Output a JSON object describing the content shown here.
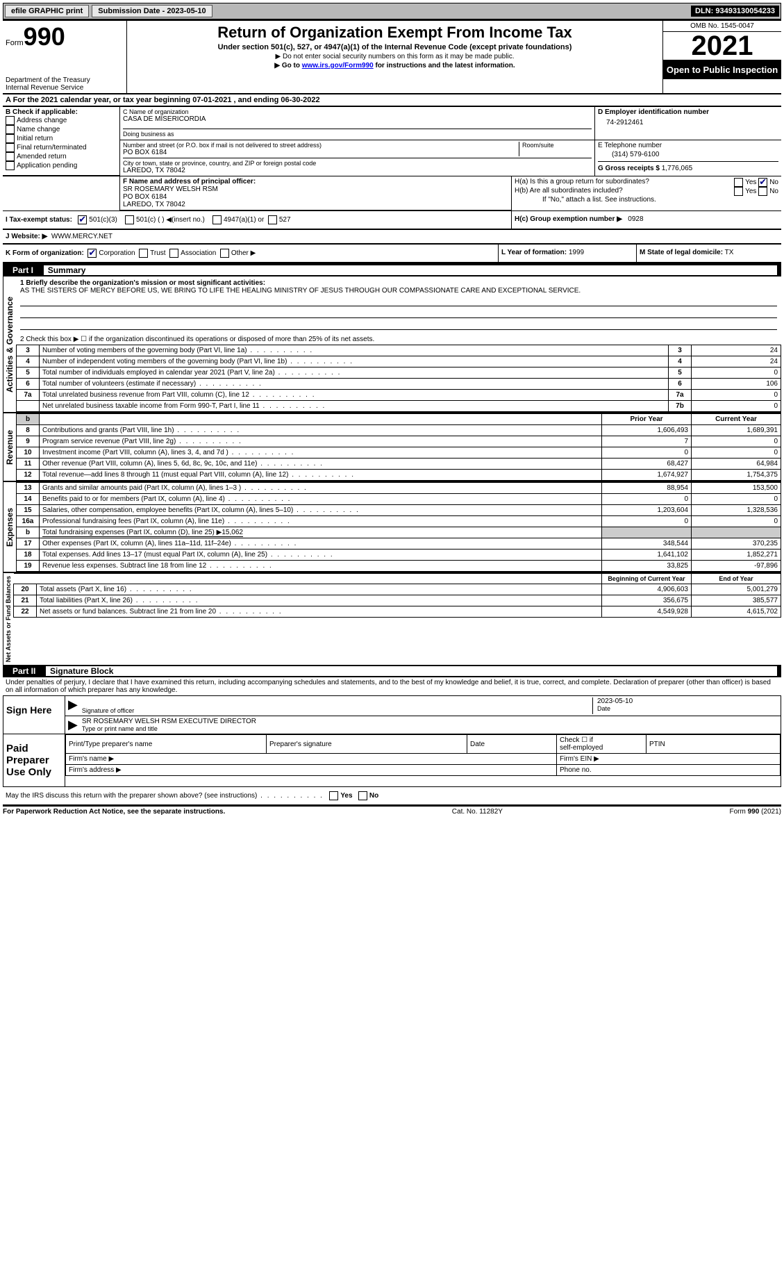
{
  "topbar": {
    "efile": "efile GRAPHIC print",
    "submission_label": "Submission Date - 2023-05-10",
    "dln": "DLN: 93493130054233"
  },
  "header": {
    "form_prefix": "Form",
    "form_no": "990",
    "dept": "Department of the Treasury",
    "irs": "Internal Revenue Service",
    "title": "Return of Organization Exempt From Income Tax",
    "subtitle": "Under section 501(c), 527, or 4947(a)(1) of the Internal Revenue Code (except private foundations)",
    "note1": "▶ Do not enter social security numbers on this form as it may be made public.",
    "note2_pre": "▶ Go to ",
    "note2_link": "www.irs.gov/Form990",
    "note2_post": " for instructions and the latest information.",
    "omb": "OMB No. 1545-0047",
    "year": "2021",
    "open": "Open to Public Inspection"
  },
  "lineA": "A For the 2021 calendar year, or tax year beginning 07-01-2021    , and ending 06-30-2022",
  "boxB": {
    "title": "B Check if applicable:",
    "items": [
      "Address change",
      "Name change",
      "Initial return",
      "Final return/terminated",
      "Amended return",
      "Application pending"
    ]
  },
  "boxC": {
    "label_name": "C Name of organization",
    "name": "CASA DE MISERICORDIA",
    "dba_label": "Doing business as",
    "dba": "",
    "street_label": "Number and street (or P.O. box if mail is not delivered to street address)",
    "room_label": "Room/suite",
    "street": "PO BOX 6184",
    "city_label": "City or town, state or province, country, and ZIP or foreign postal code",
    "city": "LAREDO, TX  78042"
  },
  "boxD": {
    "label": "D Employer identification number",
    "val": "74-2912461"
  },
  "boxE": {
    "label": "E Telephone number",
    "val": "(314) 579-6100"
  },
  "boxG": {
    "label": "G Gross receipts $",
    "val": "1,776,065"
  },
  "boxF": {
    "label": "F Name and address of principal officer:",
    "l1": "SR ROSEMARY WELSH RSM",
    "l2": "PO BOX 6184",
    "l3": "LAREDO, TX  78042"
  },
  "boxH": {
    "a": "H(a)  Is this a group return for subordinates?",
    "b": "H(b)  Are all subordinates included?",
    "b_note": "If \"No,\" attach a list. See instructions.",
    "c_label": "H(c)  Group exemption number ▶",
    "c_val": "0928",
    "yes": "Yes",
    "no": "No"
  },
  "boxI": {
    "label": "I Tax-exempt status:",
    "o1": "501(c)(3)",
    "o2": "501(c) (  ) ◀(insert no.)",
    "o3": "4947(a)(1) or",
    "o4": "527"
  },
  "boxJ": {
    "label": "J Website: ▶",
    "val": "WWW.MERCY.NET"
  },
  "boxK": {
    "label": "K Form of organization:",
    "o1": "Corporation",
    "o2": "Trust",
    "o3": "Association",
    "o4": "Other ▶"
  },
  "boxL": {
    "label": "L Year of formation:",
    "val": "1999"
  },
  "boxM": {
    "label": "M State of legal domicile:",
    "val": "TX"
  },
  "part1": {
    "label": "Part I",
    "title": "Summary"
  },
  "summary": {
    "q1_label": "1  Briefly describe the organization's mission or most significant activities:",
    "q1_text": "AS THE SISTERS OF MERCY BEFORE US, WE BRING TO LIFE THE HEALING MINISTRY OF JESUS THROUGH OUR COMPASSIONATE CARE AND EXCEPTIONAL SERVICE.",
    "q2": "2  Check this box ▶ ☐  if the organization discontinued its operations or disposed of more than 25% of its net assets.",
    "lines_top": [
      {
        "n": "3",
        "t": "Number of voting members of the governing body (Part VI, line 1a)",
        "box": "3",
        "v": "24"
      },
      {
        "n": "4",
        "t": "Number of independent voting members of the governing body (Part VI, line 1b)",
        "box": "4",
        "v": "24"
      },
      {
        "n": "5",
        "t": "Total number of individuals employed in calendar year 2021 (Part V, line 2a)",
        "box": "5",
        "v": "0"
      },
      {
        "n": "6",
        "t": "Total number of volunteers (estimate if necessary)",
        "box": "6",
        "v": "106"
      },
      {
        "n": "7a",
        "t": "Total unrelated business revenue from Part VIII, column (C), line 12",
        "box": "7a",
        "v": "0"
      },
      {
        "n": "",
        "t": "Net unrelated business taxable income from Form 990-T, Part I, line 11",
        "box": "7b",
        "v": "0"
      }
    ],
    "col_prior": "Prior Year",
    "col_current": "Current Year",
    "revenue": [
      {
        "n": "8",
        "t": "Contributions and grants (Part VIII, line 1h)",
        "p": "1,606,493",
        "c": "1,689,391"
      },
      {
        "n": "9",
        "t": "Program service revenue (Part VIII, line 2g)",
        "p": "7",
        "c": "0"
      },
      {
        "n": "10",
        "t": "Investment income (Part VIII, column (A), lines 3, 4, and 7d )",
        "p": "0",
        "c": "0"
      },
      {
        "n": "11",
        "t": "Other revenue (Part VIII, column (A), lines 5, 6d, 8c, 9c, 10c, and 11e)",
        "p": "68,427",
        "c": "64,984"
      },
      {
        "n": "12",
        "t": "Total revenue—add lines 8 through 11 (must equal Part VIII, column (A), line 12)",
        "p": "1,674,927",
        "c": "1,754,375"
      }
    ],
    "expenses": [
      {
        "n": "13",
        "t": "Grants and similar amounts paid (Part IX, column (A), lines 1–3 )",
        "p": "88,954",
        "c": "153,500"
      },
      {
        "n": "14",
        "t": "Benefits paid to or for members (Part IX, column (A), line 4)",
        "p": "0",
        "c": "0"
      },
      {
        "n": "15",
        "t": "Salaries, other compensation, employee benefits (Part IX, column (A), lines 5–10)",
        "p": "1,203,604",
        "c": "1,328,536"
      },
      {
        "n": "16a",
        "t": "Professional fundraising fees (Part IX, column (A), line 11e)",
        "p": "0",
        "c": "0"
      },
      {
        "n": "b",
        "t": "Total fundraising expenses (Part IX, column (D), line 25) ▶15,062",
        "p": "shade",
        "c": "shade"
      },
      {
        "n": "17",
        "t": "Other expenses (Part IX, column (A), lines 11a–11d, 11f–24e)",
        "p": "348,544",
        "c": "370,235"
      },
      {
        "n": "18",
        "t": "Total expenses. Add lines 13–17 (must equal Part IX, column (A), line 25)",
        "p": "1,641,102",
        "c": "1,852,271"
      },
      {
        "n": "19",
        "t": "Revenue less expenses. Subtract line 18 from line 12",
        "p": "33,825",
        "c": "-97,896"
      }
    ],
    "col_begin": "Beginning of Current Year",
    "col_end": "End of Year",
    "netassets": [
      {
        "n": "20",
        "t": "Total assets (Part X, line 16)",
        "p": "4,906,603",
        "c": "5,001,279"
      },
      {
        "n": "21",
        "t": "Total liabilities (Part X, line 26)",
        "p": "356,675",
        "c": "385,577"
      },
      {
        "n": "22",
        "t": "Net assets or fund balances. Subtract line 21 from line 20",
        "p": "4,549,928",
        "c": "4,615,702"
      }
    ],
    "side_ag": "Activities & Governance",
    "side_rev": "Revenue",
    "side_exp": "Expenses",
    "side_na": "Net Assets or Fund Balances"
  },
  "part2": {
    "label": "Part II",
    "title": "Signature Block"
  },
  "penalties": "Under penalties of perjury, I declare that I have examined this return, including accompanying schedules and statements, and to the best of my knowledge and belief, it is true, correct, and complete. Declaration of preparer (other than officer) is based on all information of which preparer has any knowledge.",
  "sign": {
    "here": "Sign Here",
    "sig_label": "Signature of officer",
    "date_label": "Date",
    "date_val": "2023-05-10",
    "name_val": "SR ROSEMARY WELSH RSM  EXECUTIVE DIRECTOR",
    "name_label": "Type or print name and title"
  },
  "paid": {
    "title": "Paid Preparer Use Only",
    "c1": "Print/Type preparer's name",
    "c2": "Preparer's signature",
    "c3": "Date",
    "c4a": "Check ☐ if",
    "c4b": "self-employed",
    "c5": "PTIN",
    "firm_name": "Firm's name   ▶",
    "firm_ein": "Firm's EIN ▶",
    "firm_addr": "Firm's address ▶",
    "phone": "Phone no."
  },
  "discuss": "May the IRS discuss this return with the preparer shown above? (see instructions)",
  "footer": {
    "left": "For Paperwork Reduction Act Notice, see the separate instructions.",
    "mid": "Cat. No. 11282Y",
    "right": "Form 990 (2021)"
  }
}
